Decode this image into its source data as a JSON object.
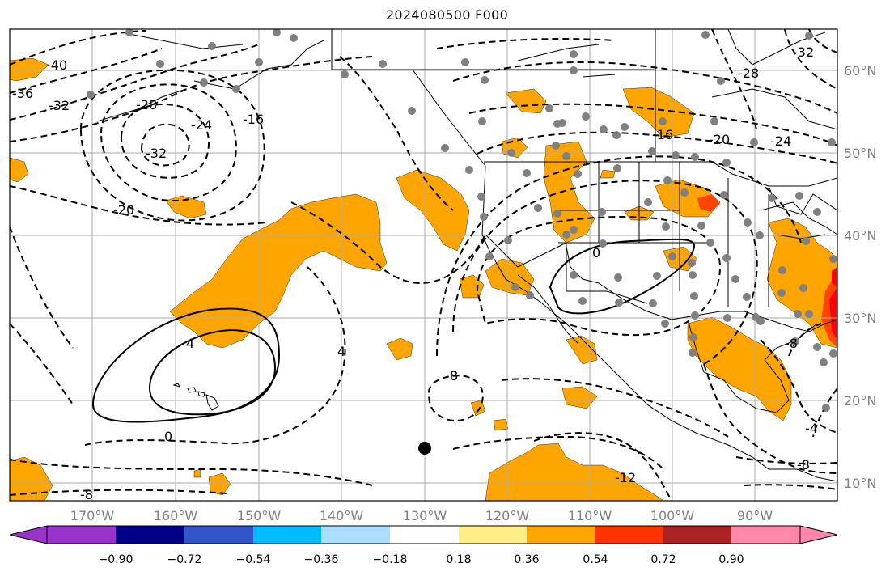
{
  "title": "2024080500 F000",
  "map": {
    "lon_labels": [
      "170°W",
      "160°W",
      "150°W",
      "140°W",
      "130°W",
      "120°W",
      "110°W",
      "100°W",
      "90°W"
    ],
    "lat_labels": [
      "60°N",
      "50°N",
      "40°N",
      "30°N",
      "20°N",
      "10°N"
    ],
    "contour_labels": [
      "-40",
      "-36",
      "-32",
      "-28",
      "-24",
      "-16",
      "-32",
      "-20",
      "4",
      "0",
      "4",
      "8",
      "-8",
      "0",
      "-28",
      "-32",
      "-16",
      "-20",
      "-24",
      "-8",
      "-4",
      "-8",
      "-12"
    ],
    "storm_marker": "black-dot",
    "station_color": "#808080",
    "shading_colors": {
      "light": "#ffa500",
      "medium": "#ff4500",
      "strong": "#ff0000"
    }
  },
  "colorbar": {
    "tick_labels": [
      "−0.90",
      "−0.72",
      "−0.54",
      "−0.36",
      "−0.18",
      "0.18",
      "0.36",
      "0.54",
      "0.72",
      "0.90"
    ],
    "colors": [
      "#9933cc",
      "#000088",
      "#3355cc",
      "#00bbff",
      "#aaddff",
      "#ffffff",
      "#ffee88",
      "#ffa500",
      "#ff3300",
      "#aa2222",
      "#ff88aa"
    ]
  }
}
